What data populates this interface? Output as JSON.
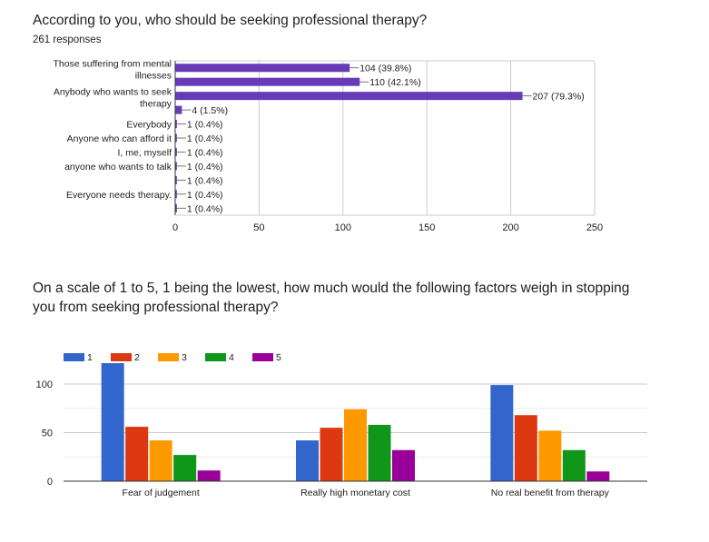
{
  "question1": {
    "title": "According to you, who should be seeking professional therapy?",
    "responses": "261 responses"
  },
  "question2": {
    "title_line1": "On a scale of 1 to 5, 1 being the lowest, how much would the following factors weigh in stopping",
    "title_line2": "you from seeking professional therapy?"
  },
  "chart_data": [
    {
      "type": "bar",
      "orientation": "horizontal",
      "categories": [
        [
          "Those suffering from mental",
          "illnesses"
        ],
        [],
        [
          "Anybody who wants to seek",
          "therapy"
        ],
        [],
        [
          "Everybody"
        ],
        [
          "Anyone who can afford it"
        ],
        [
          "I, me, myself"
        ],
        [
          "anyone who wants to talk"
        ],
        [],
        [
          "Everyone needs therapy."
        ],
        []
      ],
      "values": [
        104,
        110,
        207,
        4,
        1,
        1,
        1,
        1,
        1,
        1,
        1
      ],
      "data_labels": [
        "104 (39.8%)",
        "110 (42.1%)",
        "207 (79.3%)",
        "4 (1.5%)",
        "1 (0.4%)",
        "1 (0.4%)",
        "1 (0.4%)",
        "1 (0.4%)",
        "1 (0.4%)",
        "1 (0.4%)",
        "1 (0.4%)"
      ],
      "xlim": [
        0,
        250
      ],
      "xticks": [
        0,
        50,
        100,
        150,
        200,
        250
      ],
      "grid": true,
      "bar_color": "#673ab7"
    },
    {
      "type": "bar",
      "orientation": "vertical",
      "categories": [
        "Fear of judgement",
        "Really high monetary cost",
        "No real benefit from therapy"
      ],
      "series": [
        {
          "name": "1",
          "color": "#3366cc",
          "values": [
            122,
            42,
            99
          ]
        },
        {
          "name": "2",
          "color": "#dc3912",
          "values": [
            56,
            55,
            68
          ]
        },
        {
          "name": "3",
          "color": "#ff9900",
          "values": [
            42,
            74,
            52
          ]
        },
        {
          "name": "4",
          "color": "#109618",
          "values": [
            27,
            58,
            32
          ]
        },
        {
          "name": "5",
          "color": "#990099",
          "values": [
            11,
            32,
            10
          ]
        }
      ],
      "ylim": [
        0,
        100
      ],
      "yticks": [
        0,
        50,
        100
      ],
      "grid": true,
      "legend": "top-left"
    }
  ]
}
